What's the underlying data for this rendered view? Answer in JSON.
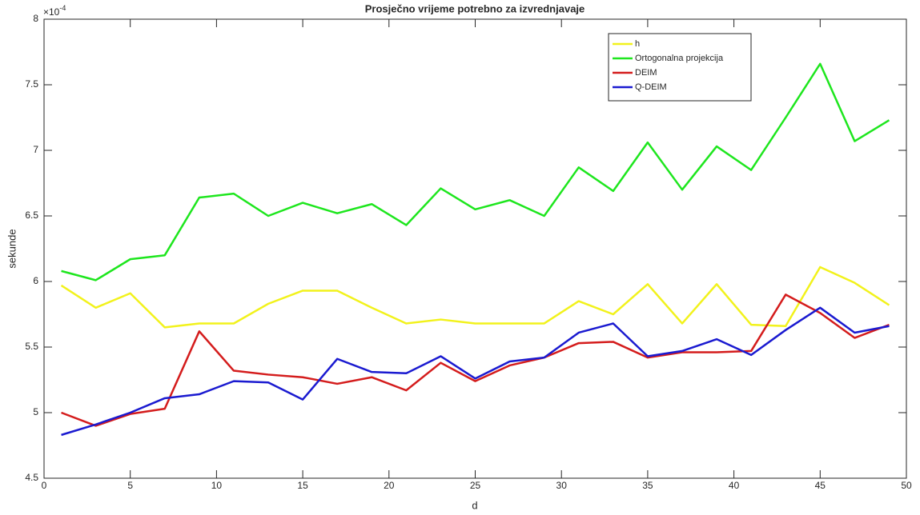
{
  "chart_data": {
    "type": "line",
    "title": "Prosječno vrijeme potrebno za izvrednjavaje",
    "x_label": "d",
    "y_label": "sekunde",
    "y_exponent": {
      "base": "×10",
      "power": "-4"
    },
    "x": [
      1,
      3,
      5,
      7,
      9,
      11,
      13,
      15,
      17,
      19,
      21,
      23,
      25,
      27,
      29,
      31,
      33,
      35,
      37,
      39,
      41,
      43,
      45,
      47,
      49
    ],
    "series": [
      {
        "name": "h",
        "color": "#f2f21c",
        "values": [
          5.97,
          5.8,
          5.91,
          5.65,
          5.68,
          5.68,
          5.83,
          5.93,
          5.93,
          5.8,
          5.68,
          5.71,
          5.68,
          5.68,
          5.68,
          5.85,
          5.75,
          5.98,
          5.68,
          5.98,
          5.67,
          5.66,
          6.11,
          5.99,
          5.82
        ]
      },
      {
        "name": "Ortogonalna projekcija",
        "color": "#1ee61e",
        "values": [
          6.08,
          6.01,
          6.17,
          6.2,
          6.64,
          6.67,
          6.5,
          6.6,
          6.52,
          6.59,
          6.43,
          6.71,
          6.55,
          6.62,
          6.5,
          6.87,
          6.69,
          7.06,
          6.7,
          7.03,
          6.85,
          7.25,
          7.66,
          7.07,
          7.23
        ]
      },
      {
        "name": "DEIM",
        "color": "#d41c1c",
        "values": [
          5.0,
          4.9,
          4.99,
          5.03,
          5.62,
          5.32,
          5.29,
          5.27,
          5.22,
          5.27,
          5.17,
          5.38,
          5.24,
          5.36,
          5.42,
          5.53,
          5.54,
          5.42,
          5.46,
          5.46,
          5.47,
          5.9,
          5.76,
          5.57,
          5.67
        ]
      },
      {
        "name": "Q-DEIM",
        "color": "#1a1ad0",
        "values": [
          4.83,
          4.91,
          5.0,
          5.11,
          5.14,
          5.24,
          5.23,
          5.1,
          5.41,
          5.31,
          5.3,
          5.43,
          5.26,
          5.39,
          5.42,
          5.61,
          5.68,
          5.43,
          5.47,
          5.56,
          5.44,
          5.63,
          5.8,
          5.61,
          5.66
        ]
      }
    ],
    "xlim": [
      0,
      50
    ],
    "xticks": [
      0,
      5,
      10,
      15,
      20,
      25,
      30,
      35,
      40,
      45,
      50
    ],
    "ylim": [
      4.5,
      8
    ],
    "yticks": [
      4.5,
      5,
      5.5,
      6,
      6.5,
      7,
      7.5,
      8
    ],
    "grid": false,
    "legend": "upper-right"
  }
}
